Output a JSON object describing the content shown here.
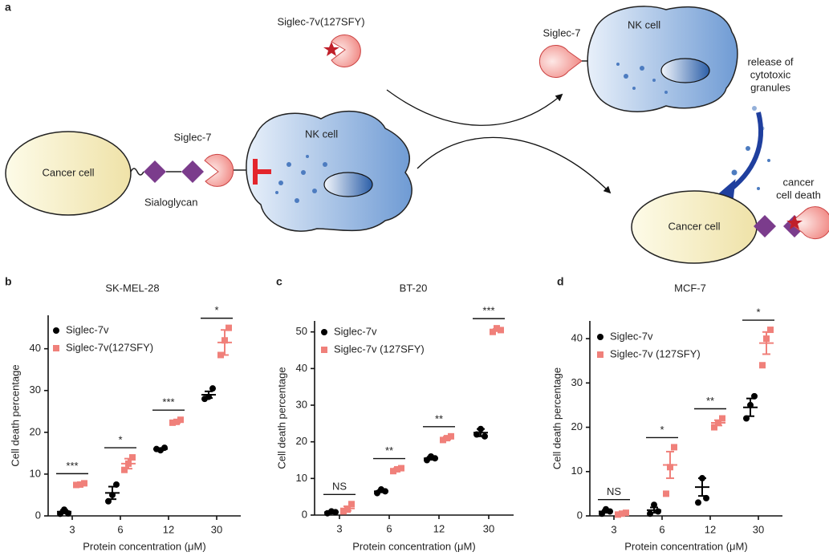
{
  "diagram": {
    "panel": "a",
    "free_receptor_label": "Siglec-7v(127SFY)",
    "top_receptor_label": "Siglec-7",
    "top_nk_label": "NK cell",
    "release_label": [
      "release of",
      "cytotoxic",
      "granules"
    ],
    "left_cancer_label": "Cancer cell",
    "left_receptor_label": "Siglec-7",
    "sialoglycan_label": "Sialoglycan",
    "left_nk_label": "NK cell",
    "right_cancer_label": "Cancer cell",
    "death_label": [
      "cancer",
      "cell death"
    ]
  },
  "chart_data": [
    {
      "type": "dot",
      "panel": "b",
      "title": "SK-MEL-28",
      "x_label": "Protein concentration (μM)",
      "y_label": "Cell death percentage",
      "categories": [
        "3",
        "6",
        "12",
        "30"
      ],
      "ylim": [
        0,
        48
      ],
      "yticks": [
        0,
        10,
        20,
        30,
        40
      ],
      "significance": [
        "***",
        "*",
        "***",
        "*"
      ],
      "series": [
        {
          "name": "Siglec-7v",
          "color": "#000000",
          "values": [
            1,
            5.5,
            16,
            29
          ],
          "errors": [
            0.4,
            1.5,
            0.2,
            0.8
          ],
          "points": [
            [
              0.5,
              1.5,
              0.6
            ],
            [
              3.5,
              5,
              7.5
            ],
            [
              16,
              15.7,
              16.3
            ],
            [
              28,
              28.5,
              30.5
            ]
          ]
        },
        {
          "name": "Siglec-7v(127SFY)",
          "color": "#f0807a",
          "values": [
            7.5,
            12.5,
            22.5,
            41.5
          ],
          "errors": [
            0.2,
            1.2,
            0.3,
            3
          ],
          "points": [
            [
              7.4,
              7.5,
              7.8
            ],
            [
              11,
              12.5,
              14
            ],
            [
              22.3,
              22.5,
              23
            ],
            [
              38.5,
              42,
              45
            ]
          ]
        }
      ]
    },
    {
      "type": "dot",
      "panel": "c",
      "title": "BT-20",
      "x_label": "Protein concentration (μM)",
      "y_label": "Cell death percentage",
      "categories": [
        "3",
        "6",
        "12",
        "30"
      ],
      "ylim": [
        0,
        53
      ],
      "yticks": [
        0,
        10,
        20,
        30,
        40,
        50
      ],
      "significance": [
        "NS",
        "**",
        "**",
        "***"
      ],
      "series": [
        {
          "name": "Siglec-7v",
          "color": "#000000",
          "values": [
            0.8,
            6.5,
            15.5,
            22.5
          ],
          "errors": [
            0.2,
            0.3,
            0.4,
            1
          ],
          "points": [
            [
              0.5,
              1,
              0.8
            ],
            [
              6,
              7,
              6.5
            ],
            [
              15,
              16,
              15.5
            ],
            [
              22,
              23.5,
              21.5
            ]
          ]
        },
        {
          "name": "Siglec-7v (127SFY)",
          "color": "#f0807a",
          "values": [
            1.8,
            12.5,
            21,
            50.5
          ],
          "errors": [
            0.6,
            0.3,
            0.4,
            0.3
          ],
          "points": [
            [
              1,
              1.5,
              3
            ],
            [
              12,
              12.5,
              12.8
            ],
            [
              20.5,
              21,
              21.5
            ],
            [
              50,
              51,
              50.5
            ]
          ]
        }
      ]
    },
    {
      "type": "dot",
      "panel": "d",
      "title": "MCF-7",
      "x_label": "Protein concentration (μM)",
      "y_label": "Cell death percentage",
      "categories": [
        "3",
        "6",
        "12",
        "30"
      ],
      "ylim": [
        0,
        44
      ],
      "yticks": [
        0,
        10,
        20,
        30,
        40
      ],
      "significance": [
        "NS",
        "*",
        "**",
        "*"
      ],
      "series": [
        {
          "name": "Siglec-7v",
          "color": "#000000",
          "values": [
            1,
            1.3,
            6.5,
            24.5
          ],
          "errors": [
            0.3,
            0.6,
            2,
            2
          ],
          "points": [
            [
              0.5,
              1.5,
              1
            ],
            [
              0.5,
              2.5,
              1
            ],
            [
              3,
              8.5,
              4
            ],
            [
              22,
              25,
              27
            ]
          ]
        },
        {
          "name": "Siglec-7v (127SFY)",
          "color": "#f0807a",
          "values": [
            0.5,
            11.5,
            21,
            39
          ],
          "errors": [
            0.1,
            3,
            0.6,
            2.5
          ],
          "points": [
            [
              0.3,
              0.5,
              0.7
            ],
            [
              5,
              11,
              15.5
            ],
            [
              20,
              21,
              22
            ],
            [
              34,
              40,
              42
            ]
          ]
        }
      ]
    }
  ]
}
